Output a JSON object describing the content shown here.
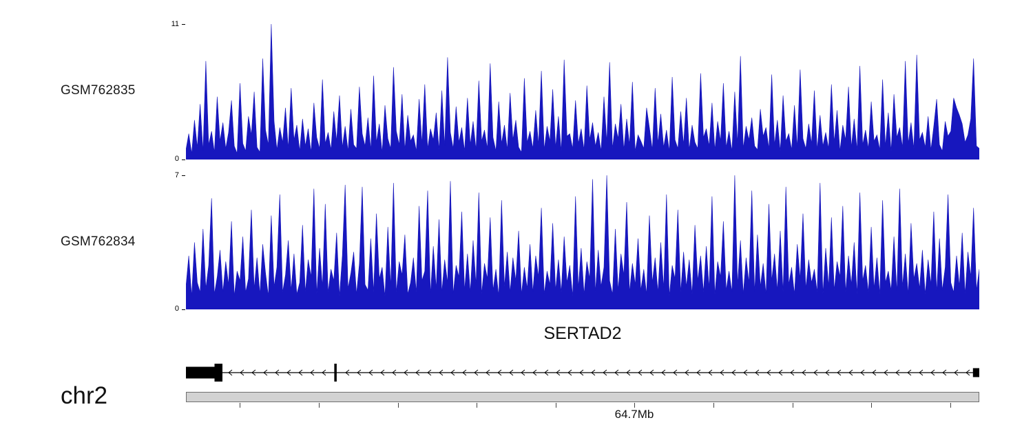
{
  "page": {
    "background": "#ffffff"
  },
  "chart_data": {
    "type": "area",
    "title": "",
    "description": "Genome browser coverage view of two ChIP/RNA signal tracks over the SERTAD2 locus on chr2",
    "legend": "none",
    "grid": false,
    "series": [
      {
        "name": "GSM762835",
        "ylim": [
          0,
          11
        ],
        "color": "#1717be",
        "values": [
          0.8,
          2.1,
          0.5,
          3.2,
          1.0,
          4.5,
          0.7,
          8.0,
          1.2,
          2.3,
          0.6,
          5.1,
          1.5,
          3.0,
          0.9,
          2.2,
          4.8,
          1.1,
          0.5,
          6.2,
          1.3,
          0.7,
          3.5,
          2.0,
          5.5,
          1.0,
          0.6,
          8.2,
          2.4,
          1.2,
          11.0,
          3.1,
          0.8,
          2.6,
          1.4,
          4.2,
          0.9,
          5.8,
          1.6,
          2.8,
          0.7,
          3.3,
          1.1,
          2.5,
          0.6,
          4.6,
          1.8,
          0.9,
          6.5,
          1.3,
          2.2,
          0.8,
          3.9,
          1.5,
          5.2,
          1.0,
          2.7,
          0.7,
          4.1,
          1.2,
          0.9,
          5.9,
          2.1,
          1.1,
          3.4,
          0.8,
          6.8,
          1.4,
          2.9,
          0.6,
          4.4,
          1.7,
          0.9,
          7.5,
          2.3,
          1.2,
          5.3,
          0.8,
          3.6,
          1.5,
          2.0,
          0.7,
          4.9,
          1.3,
          6.1,
          0.9,
          2.5,
          1.6,
          3.8,
          0.8,
          5.6,
          1.1,
          8.3,
          2.2,
          0.9,
          4.3,
          1.4,
          2.6,
          0.7,
          5.0,
          1.2,
          3.1,
          0.8,
          6.4,
          1.5,
          2.4,
          0.9,
          7.8,
          1.8,
          0.7,
          4.7,
          1.3,
          2.8,
          0.8,
          5.4,
          1.6,
          3.2,
          1.0,
          0.6,
          6.6,
          1.4,
          2.3,
          0.9,
          4.0,
          1.2,
          7.2,
          0.8,
          2.7,
          1.5,
          5.7,
          1.0,
          3.5,
          0.7,
          8.1,
          1.9,
          2.1,
          0.9,
          4.8,
          1.3,
          2.5,
          0.8,
          6.0,
          1.6,
          3.0,
          1.1,
          2.2,
          0.7,
          5.1,
          1.4,
          7.9,
          0.9,
          2.9,
          1.7,
          4.5,
          0.8,
          3.3,
          1.2,
          6.3,
          0.7,
          2.0,
          1.5,
          0.9,
          4.2,
          2.6,
          0.8,
          5.8,
          1.3,
          3.7,
          1.0,
          2.4,
          0.7,
          6.7,
          1.6,
          0.9,
          3.9,
          1.2,
          5.0,
          0.8,
          2.8,
          1.4,
          0.9,
          7.0,
          1.8,
          2.5,
          1.1,
          4.6,
          0.8,
          3.1,
          1.5,
          6.2,
          1.0,
          2.3,
          0.7,
          5.5,
          1.3,
          8.4,
          0.9,
          2.7,
          1.6,
          3.4,
          1.1,
          0.8,
          4.1,
          1.9,
          2.6,
          0.9,
          6.9,
          1.2,
          3.2,
          0.7,
          5.2,
          1.5,
          2.1,
          0.8,
          4.4,
          1.0,
          7.3,
          1.7,
          0.9,
          2.9,
          1.3,
          5.6,
          0.8,
          3.6,
          1.1,
          2.2,
          0.9,
          6.1,
          1.4,
          4.0,
          0.7,
          2.8,
          1.6,
          5.9,
          1.0,
          3.3,
          0.8,
          7.6,
          1.2,
          2.4,
          0.9,
          4.7,
          1.5,
          2.0,
          0.8,
          6.5,
          1.1,
          3.8,
          0.7,
          5.3,
          1.8,
          2.6,
          1.0,
          8.0,
          1.3,
          3.0,
          0.9,
          8.5,
          1.6,
          2.2,
          1.0,
          3.5,
          0.8,
          2.7,
          4.9,
          1.2,
          0.7,
          3.1,
          1.9,
          2.3,
          5.0,
          4.2,
          3.6,
          2.9,
          1.4,
          2.0,
          3.3,
          8.2,
          1.1,
          0.9
        ]
      },
      {
        "name": "GSM762834",
        "ylim": [
          0,
          7
        ],
        "color": "#1717be",
        "values": [
          1.2,
          2.8,
          0.7,
          3.5,
          1.4,
          0.9,
          4.2,
          1.1,
          2.3,
          5.8,
          0.8,
          1.7,
          3.1,
          0.9,
          2.5,
          1.3,
          4.6,
          0.7,
          2.0,
          1.5,
          3.8,
          0.9,
          1.6,
          5.2,
          1.1,
          2.7,
          0.8,
          3.4,
          1.9,
          0.7,
          4.9,
          1.2,
          2.2,
          6.0,
          0.9,
          1.8,
          3.6,
          1.0,
          2.9,
          0.8,
          1.4,
          4.4,
          0.9,
          2.6,
          1.7,
          6.3,
          0.8,
          3.2,
          1.2,
          5.5,
          0.9,
          2.1,
          1.5,
          4.0,
          0.7,
          2.8,
          6.5,
          1.1,
          1.9,
          3.0,
          0.8,
          2.4,
          6.4,
          1.3,
          1.0,
          3.7,
          0.9,
          5.0,
          1.6,
          2.2,
          0.7,
          4.3,
          1.2,
          6.6,
          0.9,
          2.5,
          1.8,
          3.9,
          0.8,
          1.4,
          2.7,
          0.9,
          5.4,
          1.5,
          2.0,
          6.2,
          0.8,
          3.3,
          1.1,
          4.7,
          0.9,
          2.6,
          1.4,
          6.7,
          0.8,
          2.3,
          1.7,
          5.1,
          1.0,
          2.9,
          0.9,
          3.6,
          1.3,
          6.1,
          0.8,
          2.4,
          1.6,
          4.8,
          1.0,
          2.1,
          0.7,
          5.7,
          1.2,
          3.0,
          0.9,
          2.7,
          1.5,
          4.1,
          0.8,
          2.2,
          1.1,
          3.4,
          0.9,
          2.8,
          1.7,
          5.3,
          0.8,
          2.0,
          1.3,
          4.5,
          1.0,
          2.6,
          0.9,
          3.8,
          1.4,
          2.3,
          0.7,
          5.9,
          1.1,
          3.2,
          0.8,
          2.5,
          1.6,
          6.8,
          0.9,
          3.1,
          1.2,
          2.2,
          7.0,
          1.5,
          0.8,
          4.2,
          1.0,
          2.9,
          1.8,
          5.6,
          0.9,
          2.4,
          1.3,
          3.7,
          1.0,
          2.1,
          0.8,
          4.9,
          1.4,
          2.7,
          0.9,
          3.5,
          1.1,
          6.0,
          0.7,
          2.3,
          1.6,
          5.2,
          0.9,
          3.0,
          1.2,
          2.6,
          0.8,
          4.4,
          1.5,
          2.8,
          0.9,
          3.3,
          1.1,
          5.9,
          0.8,
          2.5,
          1.7,
          4.6,
          1.0,
          2.0,
          0.9,
          7.0,
          1.3,
          3.6,
          0.8,
          2.7,
          1.4,
          6.2,
          0.9,
          3.9,
          1.2,
          2.4,
          0.8,
          5.5,
          1.5,
          2.9,
          1.0,
          4.1,
          0.9,
          6.4,
          1.3,
          2.2,
          0.8,
          3.4,
          1.6,
          5.0,
          1.1,
          2.6,
          1.4,
          2.1,
          0.9,
          6.6,
          0.8,
          3.2,
          1.2,
          4.8,
          1.0,
          2.5,
          1.7,
          5.4,
          0.9,
          2.8,
          1.3,
          3.5,
          0.8,
          6.1,
          1.5,
          2.3,
          0.9,
          4.3,
          1.1,
          2.7,
          0.8,
          5.7,
          1.4,
          2.0,
          1.0,
          3.8,
          0.9,
          6.3,
          1.2,
          2.9,
          0.8,
          4.5,
          1.6,
          2.4,
          1.1,
          3.1,
          0.8,
          2.6,
          1.3,
          5.1,
          0.9,
          3.7,
          1.0,
          2.2,
          6.0,
          1.4,
          0.9,
          2.8,
          1.2,
          4.0,
          0.8,
          3.0,
          1.7,
          5.3,
          1.0,
          2.1
        ]
      }
    ],
    "gene_annotation": {
      "name": "SERTAD2",
      "strand": "-",
      "chromosome": "chr2",
      "exons": [
        {
          "start": 0.0,
          "end": 0.036,
          "h": 17
        },
        {
          "start": 0.036,
          "end": 0.046,
          "h": 26
        },
        {
          "start": 0.187,
          "end": 0.19,
          "h": 26
        },
        {
          "start": 0.992,
          "end": 1.0,
          "h": 13
        }
      ]
    },
    "x_axis": {
      "position_label": "64.7Mb",
      "label_tick": 0.5655,
      "ticks": [
        0.068,
        0.1675,
        0.267,
        0.3665,
        0.466,
        0.5655,
        0.665,
        0.7645,
        0.864,
        0.9635
      ]
    }
  }
}
